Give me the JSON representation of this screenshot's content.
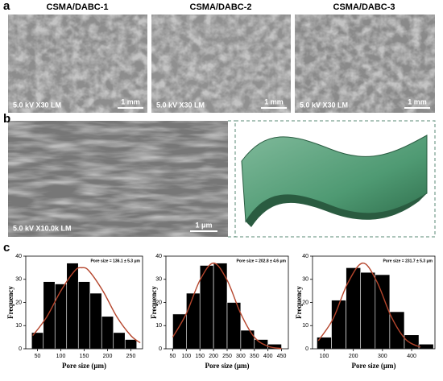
{
  "panel_labels": [
    "a",
    "b",
    "c"
  ],
  "a_images": [
    {
      "title": "CSMA/DABC-1",
      "info": "5.0 kV X30 LM",
      "scale": "1 mm"
    },
    {
      "title": "CSMA/DABC-2",
      "info": "5.0 kV X30 LM",
      "scale": "1 mm"
    },
    {
      "title": "CSMA/DABC-3",
      "info": "5.0 kV X30 LM",
      "scale": "1 mm"
    }
  ],
  "b_image": {
    "info": "5.0 kV X10.0k LM",
    "scale": "1 μm"
  },
  "chart_data": [
    {
      "type": "histogram",
      "color": "#000000",
      "xlabel": "Pore size (μm)",
      "ylabel": "Frequency",
      "annotation": "Pore size = 136.1 ± 5.3 μm",
      "bins": [
        37.5,
        62.5,
        87.5,
        112.5,
        137.5,
        162.5,
        187.5,
        212.5,
        237.5,
        262.5
      ],
      "values": [
        7,
        29,
        28,
        37,
        29,
        24,
        14,
        7,
        4
      ],
      "xlim": [
        25,
        275
      ],
      "ylim": [
        0,
        40
      ],
      "xticks": [
        50,
        100,
        150,
        200,
        250
      ],
      "yticks": [
        0,
        10,
        20,
        30,
        40
      ],
      "fit": {
        "color": "#b5452c",
        "x": [
          40,
          70,
          100,
          130,
          145,
          160,
          190,
          220,
          250,
          270
        ],
        "y": [
          5.7,
          13.8,
          25.0,
          33.7,
          35,
          33.7,
          25.0,
          13.8,
          5.7,
          2.6
        ]
      }
    },
    {
      "type": "histogram",
      "color": "#000000",
      "xlabel": "Pore size (μm)",
      "ylabel": "Frequency",
      "annotation": "Pore size = 202.8 ± 4.6 μm",
      "bins": [
        50,
        100,
        150,
        200,
        250,
        300,
        350,
        400,
        450
      ],
      "values": [
        15,
        24,
        36,
        37,
        20,
        8,
        4,
        2
      ],
      "xlim": [
        25,
        475
      ],
      "ylim": [
        0,
        40
      ],
      "xticks": [
        50,
        100,
        150,
        200,
        250,
        300,
        350,
        400,
        450
      ],
      "yticks": [
        0,
        10,
        20,
        30,
        40
      ],
      "fit": {
        "color": "#b5452c",
        "x": [
          50,
          100,
          150,
          200,
          250,
          300,
          350,
          400,
          450
        ],
        "y": [
          5.0,
          15.2,
          29.6,
          37,
          29.6,
          15.2,
          5.0,
          1.1,
          0.1
        ]
      }
    },
    {
      "type": "histogram",
      "color": "#000000",
      "xlabel": "Pore size (μm)",
      "ylabel": "Frequency",
      "annotation": "Pore size = 231.7 ± 5.3 μm",
      "bins": [
        75,
        125,
        175,
        225,
        275,
        325,
        375,
        425,
        475
      ],
      "values": [
        5,
        21,
        35,
        33,
        32,
        16,
        6,
        2
      ],
      "xlim": [
        60,
        480
      ],
      "ylim": [
        0,
        40
      ],
      "xticks": [
        100,
        200,
        300,
        400
      ],
      "yticks": [
        0,
        10,
        20,
        30,
        40
      ],
      "fit": {
        "color": "#b5452c",
        "x": [
          80,
          130,
          180,
          232,
          280,
          330,
          380,
          430
        ],
        "y": [
          3.5,
          12.8,
          28.1,
          37,
          29.2,
          13.9,
          4.0,
          0.7
        ]
      }
    }
  ]
}
